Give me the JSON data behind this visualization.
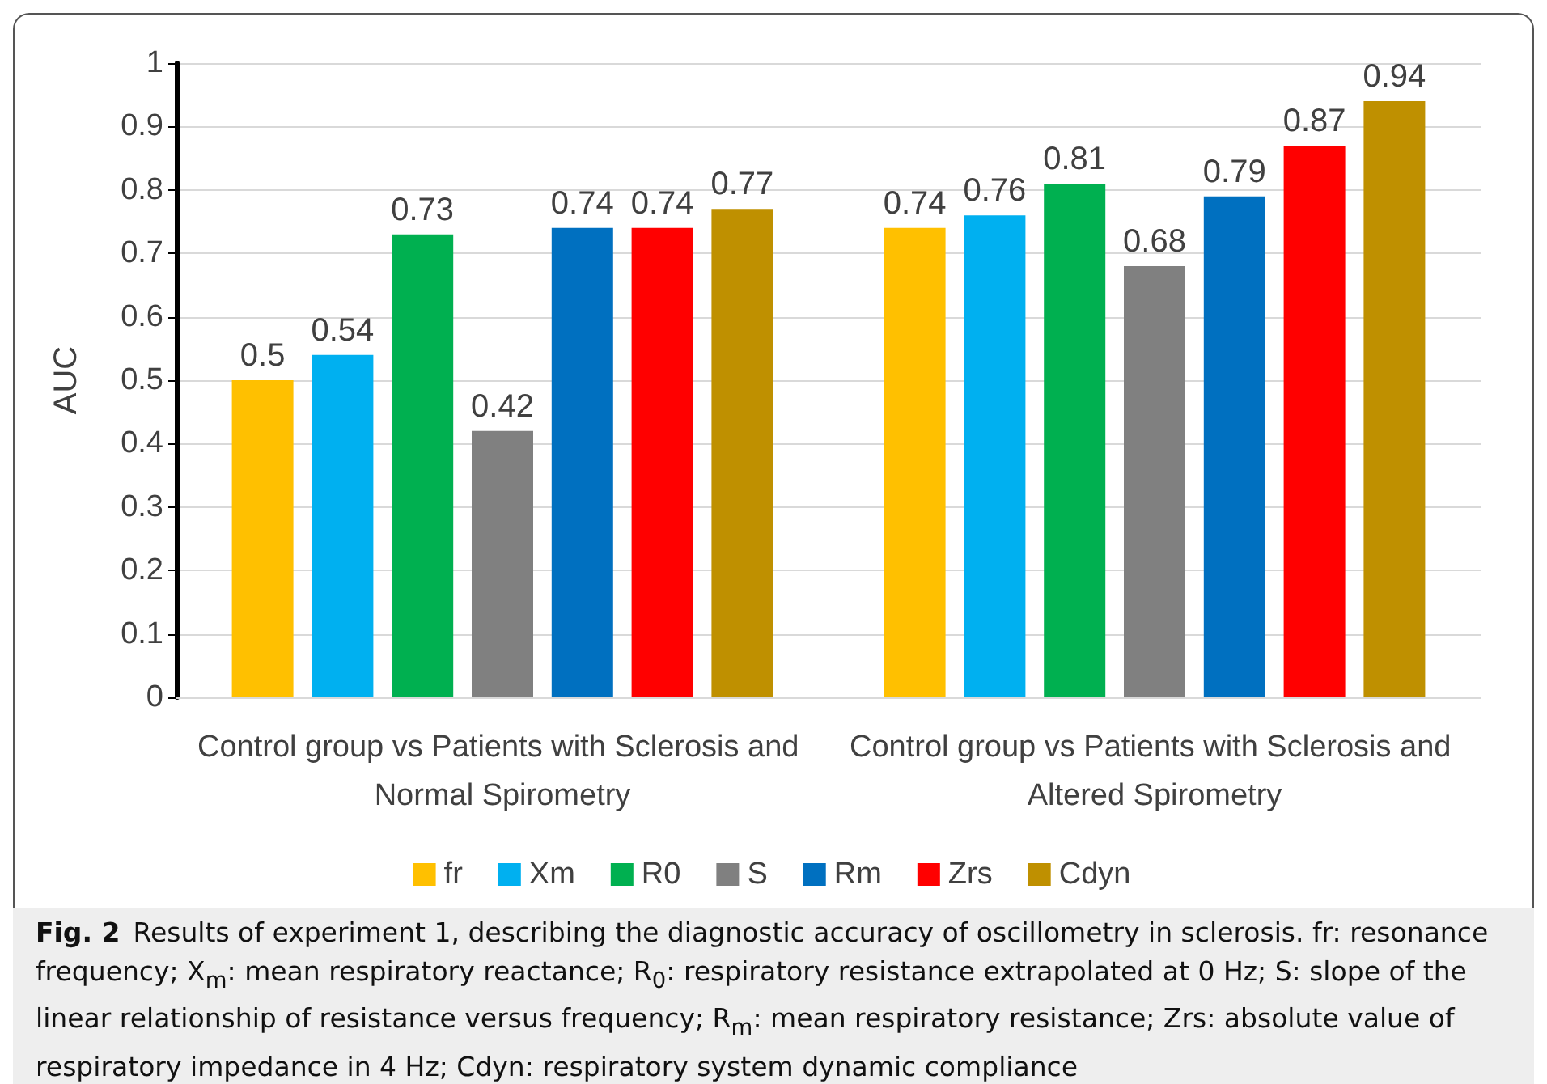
{
  "chart_data": {
    "type": "bar",
    "ylabel": "AUC",
    "categories": [
      "Control group vs Patients with Sclerosis and Normal Spirometry",
      "Control group vs Patients with Sclerosis and Altered Spirometry"
    ],
    "series": [
      {
        "name": "fr",
        "color": "#ffc000",
        "values": [
          0.5,
          0.74
        ]
      },
      {
        "name": "Xm",
        "color": "#00b0f0",
        "values": [
          0.54,
          0.76
        ]
      },
      {
        "name": "R0",
        "color": "#00b050",
        "values": [
          0.73,
          0.81
        ]
      },
      {
        "name": "S",
        "color": "#808080",
        "values": [
          0.42,
          0.68
        ]
      },
      {
        "name": "Rm",
        "color": "#0070c0",
        "values": [
          0.74,
          0.79
        ]
      },
      {
        "name": "Zrs",
        "color": "#ff0000",
        "values": [
          0.74,
          0.87
        ]
      },
      {
        "name": "Cdyn",
        "color": "#bf9000",
        "values": [
          0.77,
          0.94
        ]
      }
    ],
    "ylim": [
      0,
      1
    ],
    "yticks": [
      0,
      0.1,
      0.2,
      0.3,
      0.4,
      0.5,
      0.6,
      0.7,
      0.8,
      0.9,
      1
    ],
    "grid": "y",
    "legend": "bottom",
    "data_labels": true,
    "annotations": [
      "Fig. 2",
      "Results of experiment 1, describing the diagnostic accuracy of oscillometry in sclerosis. fr: resonance frequency; X$_{m}$: mean respiratory reactance; R$_{0}$: respiratory resistance extrapolated at 0 Hz; S: slope of the linear relationship of resistance versus frequency; R$_{m}$: mean respiratory resistance; Zrs: absolute value of respiratory impedance in 4 Hz; Cdyn: respiratory system dynamic compliance"
    ]
  }
}
